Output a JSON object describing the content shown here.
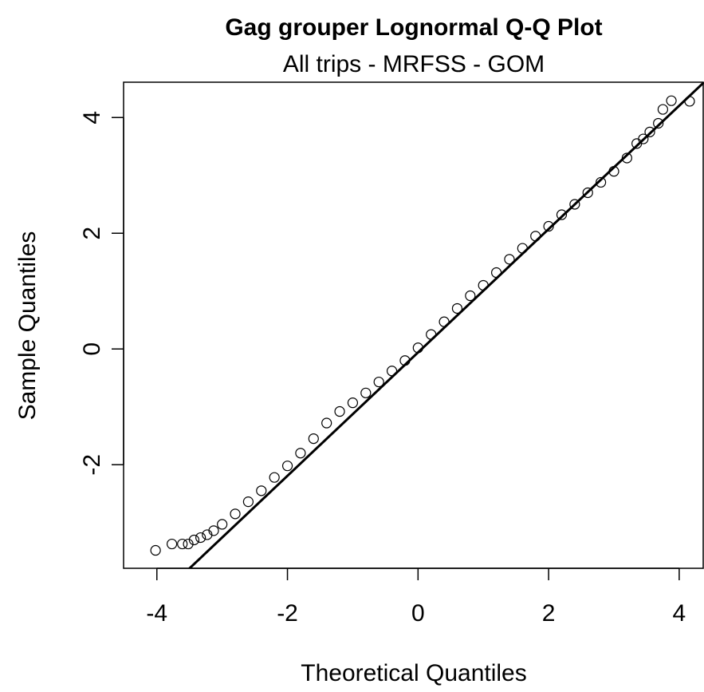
{
  "chart_data": {
    "type": "qq",
    "title": "Gag grouper Lognormal Q-Q Plot",
    "subtitle": "All trips - MRFSS - GOM",
    "x_label": "Theoretical Quantiles",
    "y_label": "Sample Quantiles",
    "xlim": [
      -4.51,
      4.38
    ],
    "ylim": [
      -3.79,
      4.61
    ],
    "xticks": [
      -4,
      -2,
      0,
      2,
      4
    ],
    "yticks": [
      -2,
      0,
      2,
      4
    ],
    "color": "#000000",
    "x": [
      -4.02,
      -3.77,
      -3.61,
      -3.52,
      -3.43,
      -3.33,
      -3.23,
      -3.13,
      -3.0,
      -2.8,
      -2.6,
      -2.4,
      -2.2,
      -2.0,
      -1.8,
      -1.6,
      -1.4,
      -1.2,
      -1.0,
      -0.8,
      -0.6,
      -0.4,
      -0.2,
      0,
      0.2,
      0.4,
      0.6,
      0.8,
      1.0,
      1.2,
      1.4,
      1.6,
      1.8,
      2.0,
      2.2,
      2.4,
      2.6,
      2.8,
      3.0,
      3.2,
      3.35,
      3.45,
      3.55,
      3.68,
      3.75,
      3.88,
      4.16
    ],
    "values": [
      -3.48,
      -3.37,
      -3.37,
      -3.37,
      -3.3,
      -3.26,
      -3.21,
      -3.14,
      -3.03,
      -2.85,
      -2.64,
      -2.45,
      -2.22,
      -2.02,
      -1.8,
      -1.55,
      -1.28,
      -1.08,
      -0.93,
      -0.76,
      -0.57,
      -0.38,
      -0.2,
      0.02,
      0.25,
      0.47,
      0.7,
      0.92,
      1.1,
      1.32,
      1.55,
      1.74,
      1.95,
      2.12,
      2.32,
      2.5,
      2.7,
      2.88,
      3.07,
      3.3,
      3.55,
      3.63,
      3.75,
      3.9,
      4.14,
      4.29,
      4.28
    ],
    "reference_line": {
      "intercept": -0.06,
      "slope": 1.066
    }
  }
}
